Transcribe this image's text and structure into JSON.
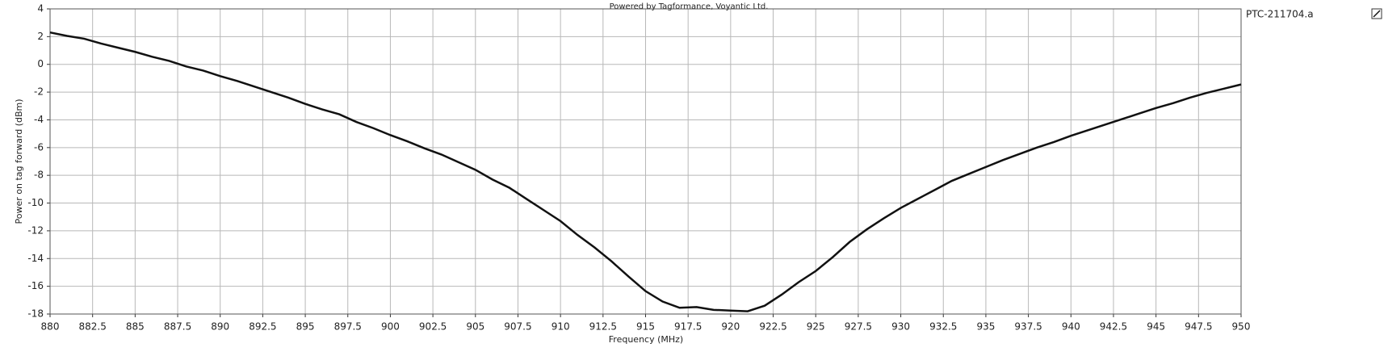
{
  "chart_data": {
    "type": "line",
    "title": "Powered by Tagformance, Voyantic Ltd.",
    "x_label": "Frequency (MHz)",
    "y_label": "Power on tag forward (dBm)",
    "x": [
      880,
      881,
      882,
      883,
      884,
      885,
      886,
      887,
      888,
      889,
      890,
      891,
      892,
      893,
      894,
      895,
      896,
      897,
      898,
      899,
      900,
      901,
      902,
      903,
      904,
      905,
      906,
      907,
      908,
      909,
      910,
      911,
      912,
      913,
      914,
      915,
      916,
      917,
      918,
      919,
      920,
      921,
      922,
      923,
      924,
      925,
      926,
      927,
      928,
      929,
      930,
      931,
      932,
      933,
      934,
      935,
      936,
      937,
      938,
      939,
      940,
      941,
      942,
      943,
      944,
      945,
      946,
      947,
      948,
      949,
      950
    ],
    "series": [
      {
        "name": "PTC-211704.a",
        "color": "#111111",
        "values": [
          2.3,
          2.05,
          1.85,
          1.5,
          1.2,
          0.9,
          0.55,
          0.25,
          -0.15,
          -0.45,
          -0.85,
          -1.2,
          -1.6,
          -2.0,
          -2.4,
          -2.85,
          -3.25,
          -3.6,
          -4.15,
          -4.6,
          -5.1,
          -5.55,
          -6.05,
          -6.5,
          -7.05,
          -7.6,
          -8.3,
          -8.9,
          -9.7,
          -10.5,
          -11.3,
          -12.3,
          -13.2,
          -14.2,
          -15.3,
          -16.35,
          -17.1,
          -17.55,
          -17.5,
          -17.7,
          -17.75,
          -17.8,
          -17.4,
          -16.6,
          -15.7,
          -14.9,
          -13.9,
          -12.8,
          -11.9,
          -11.1,
          -10.35,
          -9.7,
          -9.05,
          -8.4,
          -7.9,
          -7.4,
          -6.9,
          -6.45,
          -6.0,
          -5.6,
          -5.15,
          -4.75,
          -4.35,
          -3.95,
          -3.55,
          -3.15,
          -2.8,
          -2.4,
          -2.05,
          -1.75,
          -1.45
        ]
      }
    ],
    "xlim": [
      880,
      950
    ],
    "xticks": [
      880,
      882.5,
      885,
      887.5,
      890,
      892.5,
      895,
      897.5,
      900,
      902.5,
      905,
      907.5,
      910,
      912.5,
      915,
      917.5,
      920,
      922.5,
      925,
      927.5,
      930,
      932.5,
      935,
      937.5,
      940,
      942.5,
      945,
      947.5,
      950
    ],
    "ylim": [
      -18,
      4
    ],
    "yticks": [
      -18,
      -16,
      -14,
      -12,
      -10,
      -8,
      -6,
      -4,
      -2,
      0,
      2,
      4
    ],
    "grid": true
  }
}
